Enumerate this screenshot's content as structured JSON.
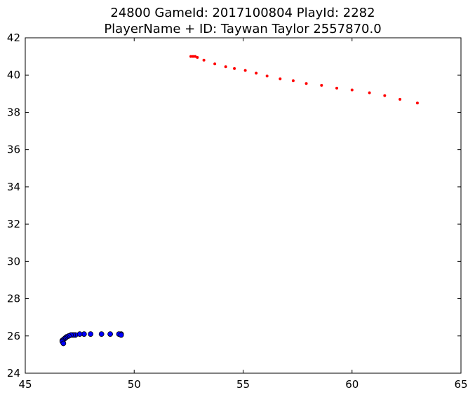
{
  "chart_data": {
    "type": "scatter",
    "title_line1": "24800 GameId: 2017100804 PlayId: 2282",
    "title_line2": "PlayerName + ID: Taywan Taylor 2557870.0",
    "xlabel": "",
    "ylabel": "",
    "xlim": [
      45,
      65
    ],
    "ylim": [
      24,
      42
    ],
    "xticks": [
      45,
      50,
      55,
      60,
      65
    ],
    "yticks": [
      24,
      26,
      28,
      30,
      32,
      34,
      36,
      38,
      40,
      42
    ],
    "grid": false,
    "series": [
      {
        "color": "#ff0000",
        "marker": "small-dot",
        "points": [
          [
            52.6,
            41.0
          ],
          [
            52.7,
            41.0
          ],
          [
            52.8,
            41.0
          ],
          [
            52.9,
            40.95
          ],
          [
            53.2,
            40.8
          ],
          [
            53.7,
            40.6
          ],
          [
            54.2,
            40.45
          ],
          [
            54.6,
            40.35
          ],
          [
            55.1,
            40.25
          ],
          [
            55.6,
            40.1
          ],
          [
            56.1,
            39.95
          ],
          [
            56.7,
            39.8
          ],
          [
            57.3,
            39.7
          ],
          [
            57.9,
            39.55
          ],
          [
            58.6,
            39.45
          ],
          [
            59.3,
            39.3
          ],
          [
            60.0,
            39.2
          ],
          [
            60.8,
            39.05
          ],
          [
            61.5,
            38.9
          ],
          [
            62.2,
            38.7
          ],
          [
            63.0,
            38.5
          ]
        ]
      },
      {
        "color": "#0000ff",
        "marker": "circle",
        "points": [
          [
            49.4,
            26.1
          ],
          [
            49.3,
            26.1
          ],
          [
            49.4,
            26.05
          ],
          [
            48.9,
            26.1
          ],
          [
            48.5,
            26.1
          ],
          [
            48.0,
            26.1
          ],
          [
            47.7,
            26.1
          ],
          [
            47.5,
            26.1
          ],
          [
            47.3,
            26.05
          ],
          [
            47.2,
            26.05
          ],
          [
            47.1,
            26.05
          ],
          [
            47.0,
            26.0
          ],
          [
            46.9,
            25.95
          ],
          [
            46.85,
            25.9
          ],
          [
            46.8,
            25.85
          ],
          [
            46.75,
            25.8
          ],
          [
            46.7,
            25.75
          ],
          [
            46.7,
            25.7
          ],
          [
            46.75,
            25.6
          ]
        ]
      }
    ]
  }
}
